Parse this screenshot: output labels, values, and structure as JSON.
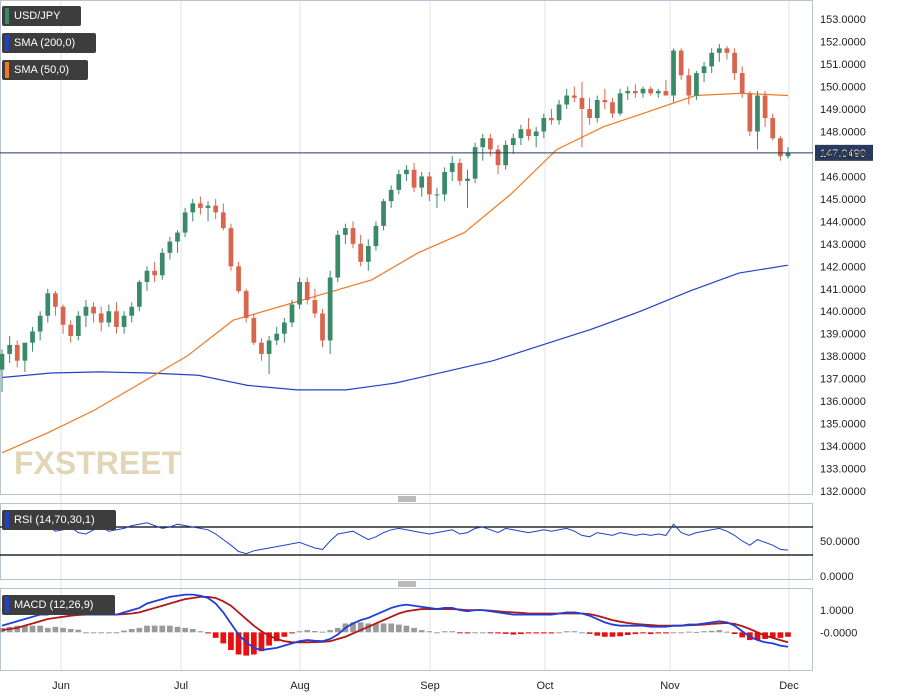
{
  "chart_data": [
    {
      "type": "candlestick",
      "symbol": "USD/JPY",
      "legend": [
        "USD/JPY",
        "SMA (200,0)",
        "SMA (50,0)"
      ],
      "colors": {
        "up": "#3a8a6a",
        "down": "#d9654e",
        "sma200": "#2142c8",
        "sma50": "#f07a22",
        "last_tag": "#2a3a5c"
      },
      "ylim": [
        132.0,
        153.5
      ],
      "y_ticks": [
        "132.0000",
        "133.0000",
        "134.0000",
        "135.0000",
        "136.0000",
        "137.0000",
        "138.0000",
        "139.0000",
        "140.0000",
        "141.0000",
        "142.0000",
        "143.0000",
        "144.0000",
        "145.0000",
        "146.0000",
        "147.0000",
        "148.0000",
        "149.0000",
        "150.0000",
        "151.0000",
        "152.0000",
        "153.0000"
      ],
      "last_price": "147.0490",
      "x_ticks": [
        "Jun",
        "Jul",
        "Aug",
        "Sep",
        "Oct",
        "Nov",
        "Dec"
      ],
      "ohlc": [
        [
          137.4,
          138.3,
          136.4,
          138.1
        ],
        [
          138.1,
          138.9,
          137.7,
          138.5
        ],
        [
          138.5,
          138.7,
          137.5,
          137.8
        ],
        [
          137.8,
          138.6,
          137.3,
          138.6
        ],
        [
          138.6,
          139.3,
          138.2,
          139.1
        ],
        [
          139.1,
          140.0,
          138.7,
          139.8
        ],
        [
          139.8,
          141.0,
          139.5,
          140.8
        ],
        [
          140.8,
          140.9,
          139.8,
          140.2
        ],
        [
          140.2,
          140.3,
          139.0,
          139.4
        ],
        [
          139.4,
          139.6,
          138.6,
          138.9
        ],
        [
          138.9,
          140.0,
          138.7,
          139.8
        ],
        [
          139.8,
          140.5,
          139.3,
          140.2
        ],
        [
          140.2,
          140.4,
          139.5,
          139.9
        ],
        [
          139.9,
          140.2,
          139.1,
          139.5
        ],
        [
          139.5,
          140.3,
          139.3,
          140.0
        ],
        [
          140.0,
          140.4,
          139.0,
          139.3
        ],
        [
          139.3,
          140.0,
          139.0,
          139.8
        ],
        [
          139.8,
          140.4,
          139.5,
          140.2
        ],
        [
          140.2,
          141.4,
          140.0,
          141.3
        ],
        [
          141.3,
          142.0,
          140.9,
          141.8
        ],
        [
          141.8,
          142.2,
          141.3,
          141.6
        ],
        [
          141.6,
          142.8,
          141.4,
          142.6
        ],
        [
          142.6,
          143.3,
          142.3,
          143.1
        ],
        [
          143.1,
          143.6,
          142.6,
          143.5
        ],
        [
          143.5,
          144.6,
          143.3,
          144.4
        ],
        [
          144.4,
          145.0,
          144.0,
          144.8
        ],
        [
          144.8,
          145.1,
          144.3,
          144.6
        ],
        [
          144.6,
          144.9,
          144.0,
          144.7
        ],
        [
          144.7,
          145.0,
          144.1,
          144.4
        ],
        [
          144.4,
          144.8,
          143.6,
          143.7
        ],
        [
          143.7,
          143.9,
          141.8,
          142.0
        ],
        [
          142.0,
          142.2,
          140.8,
          140.9
        ],
        [
          140.9,
          141.0,
          139.5,
          139.7
        ],
        [
          139.7,
          139.9,
          138.5,
          138.6
        ],
        [
          138.6,
          138.8,
          137.8,
          138.1
        ],
        [
          138.1,
          138.9,
          137.2,
          138.7
        ],
        [
          138.7,
          139.3,
          138.5,
          139.0
        ],
        [
          139.0,
          139.7,
          138.6,
          139.5
        ],
        [
          139.5,
          140.5,
          139.3,
          140.3
        ],
        [
          140.3,
          141.5,
          140.1,
          141.3
        ],
        [
          141.3,
          141.5,
          140.3,
          140.5
        ],
        [
          140.5,
          141.0,
          139.7,
          139.9
        ],
        [
          139.9,
          140.1,
          138.4,
          138.7
        ],
        [
          138.7,
          141.8,
          138.1,
          141.5
        ],
        [
          141.5,
          143.6,
          141.3,
          143.4
        ],
        [
          143.4,
          143.9,
          143.0,
          143.7
        ],
        [
          143.7,
          144.0,
          142.8,
          143.0
        ],
        [
          143.0,
          143.4,
          142.0,
          142.2
        ],
        [
          142.2,
          143.2,
          141.8,
          142.9
        ],
        [
          142.9,
          144.0,
          142.7,
          143.8
        ],
        [
          143.8,
          145.0,
          143.6,
          144.9
        ],
        [
          144.9,
          145.6,
          144.6,
          145.4
        ],
        [
          145.4,
          146.3,
          145.2,
          146.1
        ],
        [
          146.1,
          146.5,
          145.8,
          146.3
        ],
        [
          146.3,
          146.6,
          145.3,
          145.5
        ],
        [
          145.5,
          146.2,
          145.1,
          146.0
        ],
        [
          146.0,
          146.2,
          144.9,
          145.2
        ],
        [
          145.2,
          145.5,
          144.6,
          145.2
        ],
        [
          145.2,
          146.4,
          144.9,
          146.2
        ],
        [
          146.2,
          146.9,
          145.8,
          146.6
        ],
        [
          146.6,
          146.8,
          145.6,
          145.8
        ],
        [
          145.8,
          146.3,
          144.6,
          145.9
        ],
        [
          145.9,
          147.5,
          145.7,
          147.3
        ],
        [
          147.3,
          147.9,
          146.7,
          147.7
        ],
        [
          147.7,
          147.9,
          146.9,
          147.2
        ],
        [
          147.2,
          147.4,
          146.1,
          146.5
        ],
        [
          146.5,
          147.6,
          146.3,
          147.4
        ],
        [
          147.4,
          147.9,
          147.0,
          147.7
        ],
        [
          147.7,
          148.3,
          147.4,
          148.1
        ],
        [
          148.1,
          148.6,
          147.6,
          147.8
        ],
        [
          147.8,
          148.2,
          147.3,
          148.0
        ],
        [
          148.0,
          148.8,
          147.7,
          148.6
        ],
        [
          148.6,
          149.0,
          148.3,
          148.5
        ],
        [
          148.5,
          149.4,
          148.3,
          149.2
        ],
        [
          149.2,
          149.9,
          149.0,
          149.6
        ],
        [
          149.6,
          150.0,
          149.3,
          149.5
        ],
        [
          149.5,
          150.2,
          147.3,
          149.0
        ],
        [
          149.0,
          149.5,
          148.3,
          148.6
        ],
        [
          148.6,
          149.6,
          148.4,
          149.4
        ],
        [
          149.4,
          149.9,
          149.0,
          149.3
        ],
        [
          149.3,
          149.5,
          148.6,
          148.8
        ],
        [
          148.8,
          149.9,
          148.7,
          149.7
        ],
        [
          149.7,
          150.0,
          149.4,
          149.8
        ],
        [
          149.8,
          150.1,
          149.5,
          149.7
        ],
        [
          149.7,
          150.0,
          149.5,
          149.9
        ],
        [
          149.9,
          150.0,
          149.6,
          149.7
        ],
        [
          149.7,
          149.9,
          149.5,
          149.8
        ],
        [
          149.8,
          150.3,
          149.6,
          149.6
        ],
        [
          149.6,
          151.7,
          149.3,
          151.6
        ],
        [
          151.6,
          151.7,
          150.3,
          150.5
        ],
        [
          150.5,
          150.8,
          149.2,
          149.6
        ],
        [
          149.6,
          150.7,
          149.4,
          150.6
        ],
        [
          150.6,
          151.1,
          150.2,
          150.9
        ],
        [
          150.9,
          151.7,
          150.6,
          151.5
        ],
        [
          151.5,
          151.9,
          151.1,
          151.7
        ],
        [
          151.7,
          151.8,
          151.2,
          151.5
        ],
        [
          151.5,
          151.7,
          150.3,
          150.6
        ],
        [
          150.6,
          150.9,
          149.5,
          149.7
        ],
        [
          149.7,
          149.8,
          147.8,
          148.0
        ],
        [
          148.0,
          149.8,
          147.2,
          149.6
        ],
        [
          149.6,
          149.8,
          148.2,
          148.6
        ],
        [
          148.6,
          148.8,
          147.6,
          147.7
        ],
        [
          147.7,
          147.8,
          146.7,
          146.9
        ],
        [
          146.9,
          147.3,
          146.8,
          147.05
        ]
      ],
      "sma200": [
        137.05,
        137.25,
        137.3,
        137.25,
        137.15,
        136.7,
        136.5,
        136.5,
        136.8,
        137.3,
        137.8,
        138.5,
        139.2,
        140.0,
        140.9,
        141.7,
        142.05
      ],
      "sma50": [
        133.7,
        134.6,
        135.6,
        136.8,
        138.0,
        139.6,
        140.2,
        140.8,
        141.4,
        142.6,
        143.5,
        145.2,
        147.2,
        148.2,
        148.9,
        149.6,
        149.7,
        149.6
      ],
      "rsi": {
        "label": "RSI (14,70,30,1)",
        "ylim": [
          0,
          100
        ],
        "levels": [
          70,
          30
        ],
        "y_ticks": [
          "50.0000",
          "0.0000"
        ],
        "values": [
          72,
          76,
          70,
          73,
          74,
          68,
          72,
          64,
          66,
          70,
          62,
          60,
          66,
          70,
          64,
          66,
          68,
          72,
          74,
          76,
          72,
          68,
          70,
          74,
          72,
          70,
          68,
          66,
          60,
          52,
          44,
          35,
          32,
          36,
          38,
          40,
          42,
          44,
          46,
          48,
          44,
          40,
          38,
          50,
          60,
          62,
          64,
          58,
          52,
          56,
          62,
          66,
          68,
          66,
          64,
          62,
          60,
          62,
          64,
          66,
          60,
          62,
          68,
          70,
          66,
          62,
          68,
          66,
          64,
          62,
          64,
          66,
          64,
          66,
          68,
          64,
          58,
          56,
          62,
          60,
          58,
          62,
          60,
          58,
          60,
          58,
          60,
          58,
          74,
          62,
          58,
          62,
          64,
          66,
          68,
          64,
          58,
          50,
          44,
          52,
          48,
          44,
          38,
          37
        ]
      },
      "macd": {
        "label": "MACD (12,26,9)",
        "colors": {
          "macd": "#1f3fd6",
          "signal": "#b01818",
          "hist_pos": "#9a9a9a",
          "hist_neg": "#e61010"
        },
        "ylim": [
          -1.7,
          2.0
        ],
        "y_ticks": [
          "1.0000",
          "-0.0000"
        ],
        "macd_line": [
          0.3,
          0.4,
          0.5,
          0.6,
          0.7,
          0.8,
          0.8,
          0.9,
          0.9,
          0.9,
          0.9,
          0.8,
          0.8,
          0.8,
          0.8,
          0.8,
          0.9,
          1.0,
          1.1,
          1.3,
          1.4,
          1.5,
          1.6,
          1.65,
          1.7,
          1.7,
          1.65,
          1.55,
          1.3,
          0.9,
          0.4,
          -0.1,
          -0.45,
          -0.7,
          -0.8,
          -0.75,
          -0.7,
          -0.6,
          -0.5,
          -0.4,
          -0.35,
          -0.38,
          -0.4,
          -0.3,
          -0.1,
          0.2,
          0.4,
          0.55,
          0.65,
          0.8,
          0.95,
          1.1,
          1.2,
          1.25,
          1.2,
          1.15,
          1.1,
          1.05,
          1.1,
          1.1,
          1.0,
          0.95,
          1.0,
          1.0,
          0.95,
          0.9,
          0.85,
          0.8,
          0.8,
          0.8,
          0.8,
          0.8,
          0.8,
          0.85,
          0.9,
          0.9,
          0.85,
          0.75,
          0.6,
          0.45,
          0.35,
          0.3,
          0.3,
          0.3,
          0.3,
          0.25,
          0.25,
          0.25,
          0.3,
          0.3,
          0.35,
          0.35,
          0.4,
          0.45,
          0.5,
          0.45,
          0.3,
          0.05,
          -0.2,
          -0.35,
          -0.45,
          -0.5,
          -0.6,
          -0.65
        ],
        "signal_line": [
          0.1,
          0.15,
          0.2,
          0.3,
          0.4,
          0.5,
          0.6,
          0.65,
          0.7,
          0.75,
          0.78,
          0.8,
          0.8,
          0.8,
          0.8,
          0.8,
          0.82,
          0.85,
          0.9,
          1.0,
          1.1,
          1.2,
          1.3,
          1.4,
          1.5,
          1.55,
          1.6,
          1.6,
          1.55,
          1.4,
          1.2,
          0.9,
          0.6,
          0.3,
          0.05,
          -0.15,
          -0.3,
          -0.4,
          -0.45,
          -0.45,
          -0.45,
          -0.44,
          -0.43,
          -0.4,
          -0.3,
          -0.2,
          -0.05,
          0.1,
          0.25,
          0.4,
          0.55,
          0.7,
          0.85,
          0.95,
          1.0,
          1.05,
          1.05,
          1.05,
          1.05,
          1.05,
          1.03,
          1.0,
          1.0,
          1.0,
          0.98,
          0.95,
          0.92,
          0.9,
          0.88,
          0.85,
          0.85,
          0.85,
          0.85,
          0.85,
          0.85,
          0.85,
          0.85,
          0.82,
          0.75,
          0.65,
          0.55,
          0.48,
          0.42,
          0.38,
          0.35,
          0.33,
          0.3,
          0.3,
          0.3,
          0.3,
          0.32,
          0.33,
          0.35,
          0.38,
          0.4,
          0.42,
          0.38,
          0.28,
          0.15,
          0.0,
          -0.15,
          -0.25,
          -0.35,
          -0.45
        ]
      }
    }
  ],
  "watermark": "FXSTREET"
}
